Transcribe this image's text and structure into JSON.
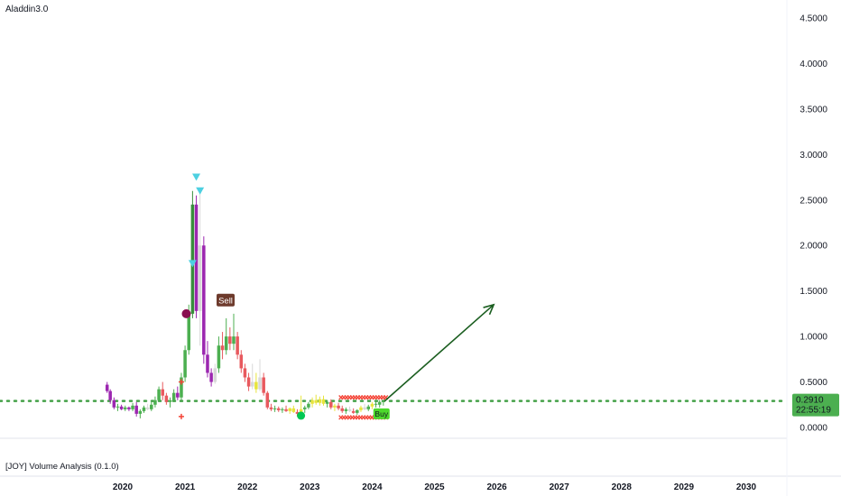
{
  "indicator_title": "Aladdin3.0",
  "pane_title": "[JOY] Volume Analysis (0.1.0)",
  "colors": {
    "up": "#4caf50",
    "down": "#e8595e",
    "bull_dark": "#388e3c",
    "bear": "#9c27b0",
    "neutral": "#d8d8d8",
    "yellow": "#e7e43c",
    "price_line": "#43a047",
    "arrow": "#1b5e20",
    "triangle": "#4dd0e1",
    "sell_tag": "#6d3a2c",
    "buy_tag": "#4cd92b",
    "maroon_dot": "#880e4f",
    "green_dot": "#00c853",
    "cross": "#f44336"
  },
  "price_tag": {
    "value": "0.2910",
    "countdown": "22:55:19"
  },
  "signals": {
    "sell": "Sell",
    "buy": "Buy"
  },
  "chart_data": {
    "type": "candlestick",
    "title": "",
    "ylim": [
      0,
      4.5
    ],
    "xlim": [
      2019.5,
      2030.6
    ],
    "y_ticks": [
      "4.5000",
      "4.0000",
      "3.5000",
      "3.0000",
      "2.5000",
      "2.0000",
      "1.5000",
      "1.0000",
      "0.5000",
      "0.0000"
    ],
    "x_ticks": [
      "2020",
      "2021",
      "2022",
      "2023",
      "2024",
      "2025",
      "2026",
      "2027",
      "2028",
      "2029",
      "2030"
    ],
    "current_price": 0.291,
    "projection_arrow": {
      "from": [
        2024.2,
        0.29
      ],
      "to": [
        2025.95,
        1.35
      ]
    },
    "candles": [
      {
        "t": 2019.75,
        "o": 0.47,
        "h": 0.5,
        "l": 0.38,
        "c": 0.4,
        "k": "bear"
      },
      {
        "t": 2019.8,
        "o": 0.4,
        "h": 0.42,
        "l": 0.26,
        "c": 0.3,
        "k": "bear"
      },
      {
        "t": 2019.86,
        "o": 0.3,
        "h": 0.33,
        "l": 0.2,
        "c": 0.22,
        "k": "bear"
      },
      {
        "t": 2019.92,
        "o": 0.22,
        "h": 0.26,
        "l": 0.18,
        "c": 0.23,
        "k": "up"
      },
      {
        "t": 2019.98,
        "o": 0.23,
        "h": 0.25,
        "l": 0.19,
        "c": 0.2,
        "k": "bear"
      },
      {
        "t": 2020.04,
        "o": 0.2,
        "h": 0.24,
        "l": 0.18,
        "c": 0.22,
        "k": "up"
      },
      {
        "t": 2020.1,
        "o": 0.22,
        "h": 0.23,
        "l": 0.18,
        "c": 0.2,
        "k": "bear"
      },
      {
        "t": 2020.16,
        "o": 0.2,
        "h": 0.27,
        "l": 0.18,
        "c": 0.24,
        "k": "up"
      },
      {
        "t": 2020.22,
        "o": 0.24,
        "h": 0.28,
        "l": 0.12,
        "c": 0.15,
        "k": "bear"
      },
      {
        "t": 2020.28,
        "o": 0.15,
        "h": 0.2,
        "l": 0.1,
        "c": 0.18,
        "k": "up"
      },
      {
        "t": 2020.34,
        "o": 0.18,
        "h": 0.24,
        "l": 0.16,
        "c": 0.22,
        "k": "up"
      },
      {
        "t": 2020.4,
        "o": 0.22,
        "h": 0.26,
        "l": 0.19,
        "c": 0.2,
        "k": "neutral"
      },
      {
        "t": 2020.46,
        "o": 0.2,
        "h": 0.28,
        "l": 0.18,
        "c": 0.25,
        "k": "up"
      },
      {
        "t": 2020.52,
        "o": 0.25,
        "h": 0.34,
        "l": 0.22,
        "c": 0.3,
        "k": "up"
      },
      {
        "t": 2020.58,
        "o": 0.3,
        "h": 0.45,
        "l": 0.28,
        "c": 0.42,
        "k": "up"
      },
      {
        "t": 2020.64,
        "o": 0.42,
        "h": 0.5,
        "l": 0.3,
        "c": 0.35,
        "k": "down"
      },
      {
        "t": 2020.7,
        "o": 0.35,
        "h": 0.38,
        "l": 0.25,
        "c": 0.28,
        "k": "down"
      },
      {
        "t": 2020.76,
        "o": 0.28,
        "h": 0.33,
        "l": 0.22,
        "c": 0.3,
        "k": "up"
      },
      {
        "t": 2020.82,
        "o": 0.3,
        "h": 0.42,
        "l": 0.28,
        "c": 0.38,
        "k": "up"
      },
      {
        "t": 2020.88,
        "o": 0.38,
        "h": 0.45,
        "l": 0.3,
        "c": 0.33,
        "k": "bear"
      },
      {
        "t": 2020.94,
        "o": 0.33,
        "h": 0.6,
        "l": 0.3,
        "c": 0.55,
        "k": "up"
      },
      {
        "t": 2021.0,
        "o": 0.55,
        "h": 0.9,
        "l": 0.5,
        "c": 0.85,
        "k": "up"
      },
      {
        "t": 2021.06,
        "o": 0.85,
        "h": 1.35,
        "l": 0.8,
        "c": 1.25,
        "k": "up"
      },
      {
        "t": 2021.12,
        "o": 1.25,
        "h": 2.6,
        "l": 1.2,
        "c": 2.45,
        "k": "bull_dark"
      },
      {
        "t": 2021.18,
        "o": 2.45,
        "h": 2.55,
        "l": 1.2,
        "c": 1.28,
        "k": "bear"
      },
      {
        "t": 2021.24,
        "o": 1.28,
        "h": 2.6,
        "l": 0.9,
        "c": 2.0,
        "k": "neutral"
      },
      {
        "t": 2021.3,
        "o": 2.0,
        "h": 2.1,
        "l": 0.7,
        "c": 0.8,
        "k": "bear"
      },
      {
        "t": 2021.36,
        "o": 0.8,
        "h": 0.95,
        "l": 0.55,
        "c": 0.6,
        "k": "bear"
      },
      {
        "t": 2021.42,
        "o": 0.6,
        "h": 0.65,
        "l": 0.45,
        "c": 0.5,
        "k": "bear"
      },
      {
        "t": 2021.48,
        "o": 0.5,
        "h": 0.7,
        "l": 0.48,
        "c": 0.65,
        "k": "neutral"
      },
      {
        "t": 2021.54,
        "o": 0.65,
        "h": 1.0,
        "l": 0.6,
        "c": 0.9,
        "k": "up"
      },
      {
        "t": 2021.6,
        "o": 0.9,
        "h": 1.05,
        "l": 0.75,
        "c": 0.85,
        "k": "down"
      },
      {
        "t": 2021.66,
        "o": 0.85,
        "h": 1.2,
        "l": 0.8,
        "c": 1.0,
        "k": "up"
      },
      {
        "t": 2021.72,
        "o": 1.0,
        "h": 1.1,
        "l": 0.85,
        "c": 0.92,
        "k": "down"
      },
      {
        "t": 2021.78,
        "o": 0.92,
        "h": 1.25,
        "l": 0.85,
        "c": 1.0,
        "k": "up"
      },
      {
        "t": 2021.84,
        "o": 1.0,
        "h": 1.05,
        "l": 0.75,
        "c": 0.8,
        "k": "down"
      },
      {
        "t": 2021.9,
        "o": 0.8,
        "h": 0.85,
        "l": 0.6,
        "c": 0.65,
        "k": "down"
      },
      {
        "t": 2021.96,
        "o": 0.65,
        "h": 0.7,
        "l": 0.5,
        "c": 0.55,
        "k": "down"
      },
      {
        "t": 2022.02,
        "o": 0.55,
        "h": 0.6,
        "l": 0.4,
        "c": 0.45,
        "k": "down"
      },
      {
        "t": 2022.08,
        "o": 0.45,
        "h": 0.7,
        "l": 0.42,
        "c": 0.5,
        "k": "neutral"
      },
      {
        "t": 2022.14,
        "o": 0.5,
        "h": 0.6,
        "l": 0.38,
        "c": 0.42,
        "k": "yellow"
      },
      {
        "t": 2022.2,
        "o": 0.42,
        "h": 0.75,
        "l": 0.4,
        "c": 0.55,
        "k": "neutral"
      },
      {
        "t": 2022.26,
        "o": 0.55,
        "h": 0.6,
        "l": 0.35,
        "c": 0.38,
        "k": "down"
      },
      {
        "t": 2022.32,
        "o": 0.38,
        "h": 0.4,
        "l": 0.2,
        "c": 0.22,
        "k": "down"
      },
      {
        "t": 2022.38,
        "o": 0.22,
        "h": 0.26,
        "l": 0.18,
        "c": 0.2,
        "k": "down"
      },
      {
        "t": 2022.44,
        "o": 0.2,
        "h": 0.24,
        "l": 0.17,
        "c": 0.21,
        "k": "up"
      },
      {
        "t": 2022.5,
        "o": 0.21,
        "h": 0.23,
        "l": 0.17,
        "c": 0.19,
        "k": "down"
      },
      {
        "t": 2022.56,
        "o": 0.19,
        "h": 0.22,
        "l": 0.16,
        "c": 0.2,
        "k": "up"
      },
      {
        "t": 2022.62,
        "o": 0.2,
        "h": 0.24,
        "l": 0.17,
        "c": 0.18,
        "k": "down"
      },
      {
        "t": 2022.68,
        "o": 0.18,
        "h": 0.22,
        "l": 0.15,
        "c": 0.21,
        "k": "yellow"
      },
      {
        "t": 2022.74,
        "o": 0.21,
        "h": 0.24,
        "l": 0.16,
        "c": 0.17,
        "k": "yellow"
      },
      {
        "t": 2022.8,
        "o": 0.17,
        "h": 0.2,
        "l": 0.12,
        "c": 0.15,
        "k": "down"
      },
      {
        "t": 2022.86,
        "o": 0.15,
        "h": 0.35,
        "l": 0.13,
        "c": 0.2,
        "k": "yellow"
      },
      {
        "t": 2022.92,
        "o": 0.2,
        "h": 0.24,
        "l": 0.16,
        "c": 0.22,
        "k": "up"
      },
      {
        "t": 2022.98,
        "o": 0.22,
        "h": 0.28,
        "l": 0.2,
        "c": 0.26,
        "k": "up"
      },
      {
        "t": 2023.04,
        "o": 0.26,
        "h": 0.33,
        "l": 0.22,
        "c": 0.3,
        "k": "yellow"
      },
      {
        "t": 2023.1,
        "o": 0.3,
        "h": 0.36,
        "l": 0.25,
        "c": 0.27,
        "k": "yellow"
      },
      {
        "t": 2023.16,
        "o": 0.27,
        "h": 0.34,
        "l": 0.24,
        "c": 0.31,
        "k": "yellow"
      },
      {
        "t": 2023.22,
        "o": 0.31,
        "h": 0.35,
        "l": 0.24,
        "c": 0.26,
        "k": "yellow"
      },
      {
        "t": 2023.28,
        "o": 0.26,
        "h": 0.3,
        "l": 0.22,
        "c": 0.28,
        "k": "up"
      },
      {
        "t": 2023.34,
        "o": 0.28,
        "h": 0.31,
        "l": 0.2,
        "c": 0.22,
        "k": "down"
      },
      {
        "t": 2023.4,
        "o": 0.22,
        "h": 0.26,
        "l": 0.18,
        "c": 0.24,
        "k": "yellow"
      },
      {
        "t": 2023.46,
        "o": 0.24,
        "h": 0.27,
        "l": 0.19,
        "c": 0.21,
        "k": "down"
      },
      {
        "t": 2023.52,
        "o": 0.21,
        "h": 0.24,
        "l": 0.16,
        "c": 0.18,
        "k": "down"
      },
      {
        "t": 2023.58,
        "o": 0.18,
        "h": 0.22,
        "l": 0.15,
        "c": 0.2,
        "k": "up"
      },
      {
        "t": 2023.64,
        "o": 0.2,
        "h": 0.23,
        "l": 0.17,
        "c": 0.18,
        "k": "neutral"
      },
      {
        "t": 2023.7,
        "o": 0.18,
        "h": 0.21,
        "l": 0.15,
        "c": 0.16,
        "k": "down"
      },
      {
        "t": 2023.76,
        "o": 0.16,
        "h": 0.2,
        "l": 0.14,
        "c": 0.19,
        "k": "up"
      },
      {
        "t": 2023.82,
        "o": 0.19,
        "h": 0.24,
        "l": 0.17,
        "c": 0.22,
        "k": "yellow"
      },
      {
        "t": 2023.88,
        "o": 0.22,
        "h": 0.26,
        "l": 0.19,
        "c": 0.2,
        "k": "neutral"
      },
      {
        "t": 2023.94,
        "o": 0.2,
        "h": 0.25,
        "l": 0.18,
        "c": 0.23,
        "k": "up"
      },
      {
        "t": 2024.0,
        "o": 0.23,
        "h": 0.28,
        "l": 0.2,
        "c": 0.26,
        "k": "yellow"
      },
      {
        "t": 2024.06,
        "o": 0.26,
        "h": 0.3,
        "l": 0.22,
        "c": 0.25,
        "k": "up"
      },
      {
        "t": 2024.12,
        "o": 0.25,
        "h": 0.3,
        "l": 0.22,
        "c": 0.28,
        "k": "up"
      },
      {
        "t": 2024.18,
        "o": 0.28,
        "h": 0.3,
        "l": 0.24,
        "c": 0.29,
        "k": "up"
      }
    ],
    "markers": [
      {
        "t": 2021.18,
        "p": 2.75,
        "k": "triangle"
      },
      {
        "t": 2021.24,
        "p": 2.6,
        "k": "triangle"
      },
      {
        "t": 2021.12,
        "p": 1.8,
        "k": "triangle"
      },
      {
        "t": 2021.02,
        "p": 1.25,
        "k": "maroon_dot"
      },
      {
        "t": 2022.86,
        "p": 0.13,
        "k": "green_dot"
      },
      {
        "t": 2020.94,
        "p": 0.5,
        "k": "plus"
      },
      {
        "t": 2020.94,
        "p": 0.12,
        "k": "plus"
      }
    ],
    "sell_signal": {
      "t": 2021.65,
      "p": 1.4
    },
    "buy_signal": {
      "t": 2024.15,
      "p": 0.15
    },
    "cross_bands": [
      {
        "from": 2023.5,
        "to": 2024.22,
        "p": 0.33
      },
      {
        "from": 2023.5,
        "to": 2024.22,
        "p": 0.11
      }
    ]
  }
}
